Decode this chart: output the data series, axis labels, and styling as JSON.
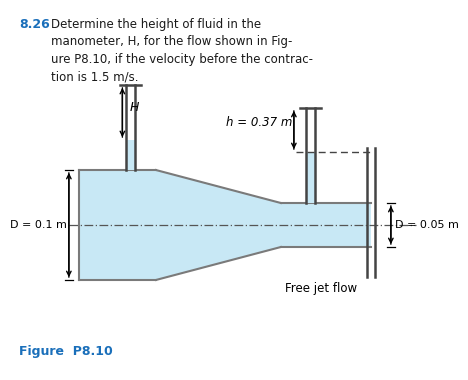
{
  "title_number": "8.26",
  "title_text": "Determine the height of fluid in the\nmanometer, H, for the flow shown in Fig-\nure P8.10, if the velocity before the contrac-\ntion is 1.5 m/s.",
  "figure_label": "Figure  P8.10",
  "label_H": "H",
  "label_h": "h = 0.37 m",
  "label_D1": "D = 0.1 m",
  "label_D2": "D = 0.05 m",
  "label_freejet": "Free jet flow",
  "pipe_color": "#c8e8f5",
  "pipe_edge_color": "#7a7a7a",
  "bg_color": "#ffffff",
  "text_color_title": "#1a1a1a",
  "text_color_number": "#1a6fba",
  "arrow_color": "#000000",
  "tube_color": "#444444",
  "centerline_color": "#555555"
}
